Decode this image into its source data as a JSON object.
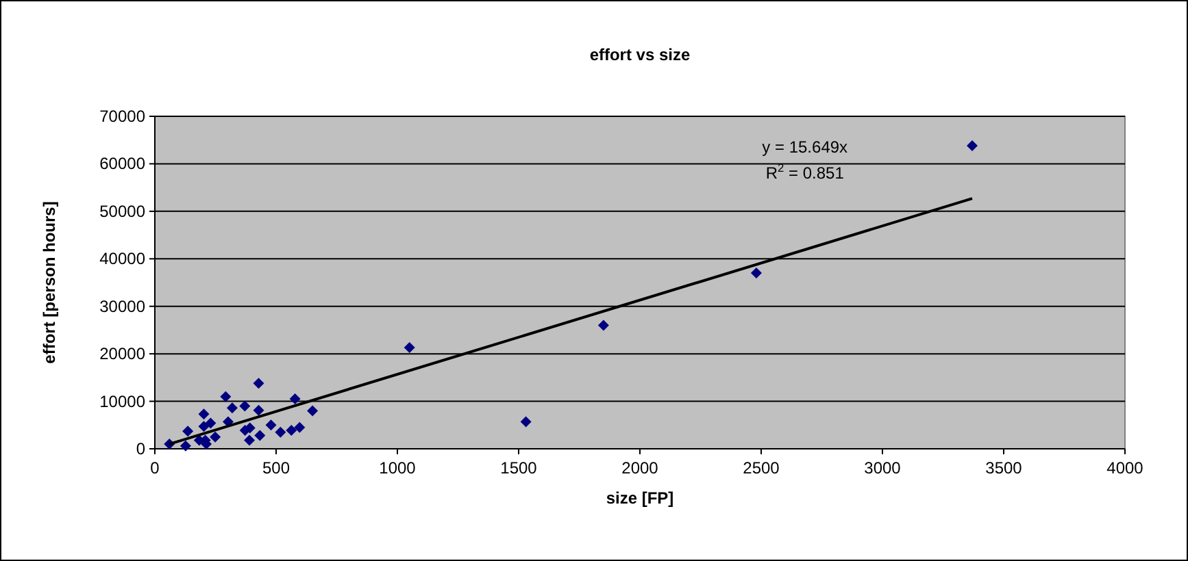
{
  "chart_data": {
    "type": "scatter",
    "title": "effort vs size",
    "xlabel": "size [FP]",
    "ylabel": "effort [person hours]",
    "xlim": [
      0,
      4000
    ],
    "xticks": [
      0,
      500,
      1000,
      1500,
      2000,
      2500,
      3000,
      3500,
      4000
    ],
    "ylim": [
      0,
      70000
    ],
    "yticks": [
      0,
      10000,
      20000,
      30000,
      40000,
      50000,
      60000,
      70000
    ],
    "grid": "y",
    "marker": "diamond",
    "annotations": [
      "y = 15.649x",
      "R$^{2}$ = 0.851"
    ],
    "series": [
      {
        "color": "#000080",
        "x": [
          60,
          127,
          136,
          183,
          202,
          202,
          208,
          212,
          230,
          249,
          292,
          302,
          319,
          371,
          372,
          390,
          392,
          428,
          428,
          433,
          479,
          518,
          563,
          578,
          597,
          650,
          1050,
          1530,
          1850,
          2480,
          3370
        ],
        "values": [
          1000,
          600,
          3700,
          1800,
          7300,
          4700,
          1800,
          1000,
          5400,
          2500,
          11000,
          5700,
          8600,
          9000,
          3900,
          1800,
          4400,
          13800,
          8100,
          2800,
          5000,
          3500,
          3900,
          10500,
          4500,
          8000,
          21300,
          5700,
          26000,
          37000,
          63800
        ]
      },
      {
        "type": "line",
        "color": "#000000",
        "marker": "none",
        "x": [
          60,
          3370
        ],
        "values": [
          1000,
          52700
        ]
      }
    ]
  }
}
